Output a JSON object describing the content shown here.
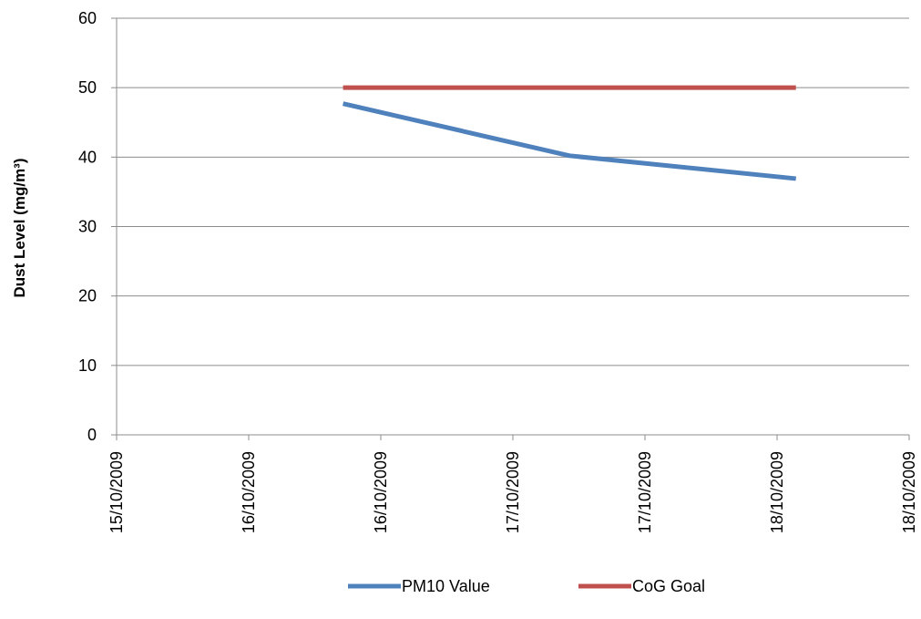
{
  "chart_data": {
    "type": "line",
    "title": "",
    "xlabel": "",
    "ylabel": "Dust Level (mg/m³)",
    "ylim": [
      0,
      60
    ],
    "yticks": [
      0,
      10,
      20,
      30,
      40,
      50,
      60
    ],
    "xlim": [
      "2009-10-15",
      "2009-10-18 12:00"
    ],
    "xtick_labels": [
      "15/10/2009",
      "16/10/2009",
      "16/10/2009",
      "17/10/2009",
      "17/10/2009",
      "18/10/2009",
      "18/10/2009"
    ],
    "grid": "horizontal",
    "legend_position": "bottom",
    "series": [
      {
        "name": "PM10 Value",
        "color": "#4f81bd",
        "x": [
          "2009-10-16",
          "2009-10-17",
          "2009-10-18"
        ],
        "values": [
          47.7,
          40.2,
          36.9
        ]
      },
      {
        "name": "CoG Goal",
        "color": "#c0504d",
        "x": [
          "2009-10-16",
          "2009-10-17",
          "2009-10-18"
        ],
        "values": [
          50,
          50,
          50
        ]
      }
    ]
  }
}
